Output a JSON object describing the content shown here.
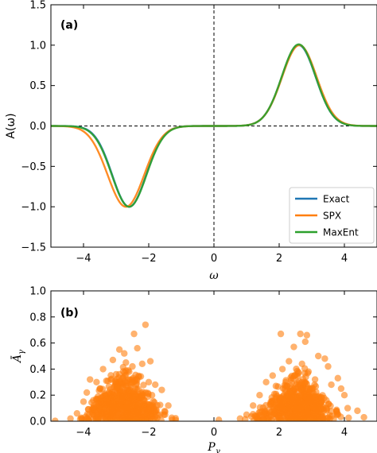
{
  "chart_data": [
    {
      "type": "line",
      "panel_label": "(a)",
      "xlabel": "ω",
      "ylabel": "A(ω)",
      "xlim": [
        -5,
        5
      ],
      "ylim": [
        -1.5,
        1.5
      ],
      "xticks": [
        -4,
        -2,
        0,
        2,
        4
      ],
      "yticks": [
        -1.5,
        -1.0,
        -0.5,
        0.0,
        0.5,
        1.0,
        1.5
      ],
      "xtick_labels": [
        "−4",
        "−2",
        "0",
        "2",
        "4"
      ],
      "ytick_labels": [
        "−1.5",
        "−1.0",
        "−0.5",
        "0.0",
        "0.5",
        "1.0",
        "1.5"
      ],
      "grid": false,
      "legend_position": "lower-right",
      "reference_lines": {
        "horizontal_dashed_y": 0,
        "vertical_dashed_x": 0
      },
      "series": [
        {
          "name": "Exact",
          "color": "#1f77b4",
          "peaks": [
            {
              "center": -2.6,
              "height": -1.0,
              "width": 0.52
            },
            {
              "center": 2.6,
              "height": 1.0,
              "width": 0.52
            }
          ]
        },
        {
          "name": "SPX",
          "color": "#ff7f0e",
          "peaks": [
            {
              "center": -2.7,
              "height": -1.0,
              "width": 0.56
            },
            {
              "center": 2.62,
              "height": 1.0,
              "width": 0.53
            }
          ]
        },
        {
          "name": "MaxEnt",
          "color": "#2ca02c",
          "peaks": [
            {
              "center": -2.6,
              "height": -1.0,
              "width": 0.53
            },
            {
              "center": 2.6,
              "height": 1.01,
              "width": 0.52
            }
          ]
        }
      ]
    },
    {
      "type": "scatter",
      "panel_label": "(b)",
      "xlabel": "P_γ",
      "ylabel": "Ā_γ",
      "xlim": [
        -5,
        5
      ],
      "ylim": [
        0,
        1.0
      ],
      "xticks": [
        -4,
        -2,
        0,
        2,
        4
      ],
      "yticks": [
        0.0,
        0.2,
        0.4,
        0.6,
        0.8,
        1.0
      ],
      "xtick_labels": [
        "−4",
        "−2",
        "0",
        "2",
        "4"
      ],
      "ytick_labels": [
        "0.0",
        "0.2",
        "0.4",
        "0.6",
        "0.8",
        "1.0"
      ],
      "grid": false,
      "color": "#ff7f0e",
      "points": [
        [
          -2.1,
          0.74
        ],
        [
          -2.45,
          0.67
        ],
        [
          -2.35,
          0.56
        ],
        [
          -2.9,
          0.55
        ],
        [
          -1.95,
          0.46
        ],
        [
          -3.1,
          0.47
        ],
        [
          -2.7,
          0.45
        ],
        [
          -2.2,
          0.44
        ],
        [
          -3.4,
          0.4
        ],
        [
          -2.5,
          0.42
        ],
        [
          -3.8,
          0.32
        ],
        [
          -3.6,
          0.3
        ],
        [
          -1.8,
          0.28
        ],
        [
          -1.6,
          0.24
        ],
        [
          -3.9,
          0.22
        ],
        [
          -4.0,
          0.15
        ],
        [
          -4.2,
          0.06
        ],
        [
          -4.4,
          0.02
        ],
        [
          -1.4,
          0.12
        ],
        [
          -1.5,
          0.05
        ],
        [
          -3.0,
          0.36
        ],
        [
          -2.8,
          0.33
        ],
        [
          -2.6,
          0.38
        ],
        [
          -2.3,
          0.34
        ],
        [
          -3.3,
          0.31
        ],
        [
          -2.0,
          0.3
        ],
        [
          -1.9,
          0.2
        ],
        [
          -3.5,
          0.25
        ],
        [
          -3.7,
          0.16
        ],
        [
          -2.75,
          0.52
        ],
        [
          2.05,
          0.67
        ],
        [
          2.65,
          0.67
        ],
        [
          2.85,
          0.66
        ],
        [
          2.8,
          0.61
        ],
        [
          2.45,
          0.57
        ],
        [
          3.2,
          0.5
        ],
        [
          2.3,
          0.46
        ],
        [
          2.1,
          0.4
        ],
        [
          3.5,
          0.42
        ],
        [
          2.7,
          0.44
        ],
        [
          1.8,
          0.35
        ],
        [
          3.8,
          0.33
        ],
        [
          1.6,
          0.3
        ],
        [
          3.9,
          0.25
        ],
        [
          1.4,
          0.2
        ],
        [
          4.0,
          0.2
        ],
        [
          1.2,
          0.12
        ],
        [
          4.1,
          0.1
        ],
        [
          1.0,
          0.05
        ],
        [
          4.4,
          0.08
        ],
        [
          4.6,
          0.03
        ],
        [
          0.8,
          0.02
        ],
        [
          3.4,
          0.48
        ],
        [
          2.9,
          0.38
        ],
        [
          2.5,
          0.35
        ],
        [
          3.1,
          0.32
        ],
        [
          2.2,
          0.3
        ],
        [
          3.6,
          0.28
        ],
        [
          1.9,
          0.27
        ],
        [
          0.15,
          0.01
        ]
      ],
      "clusters": [
        {
          "center": -2.75,
          "spread": 0.7,
          "height": 0.32,
          "count": 600
        },
        {
          "center": 2.6,
          "spread": 0.7,
          "height": 0.32,
          "count": 600
        }
      ]
    }
  ]
}
